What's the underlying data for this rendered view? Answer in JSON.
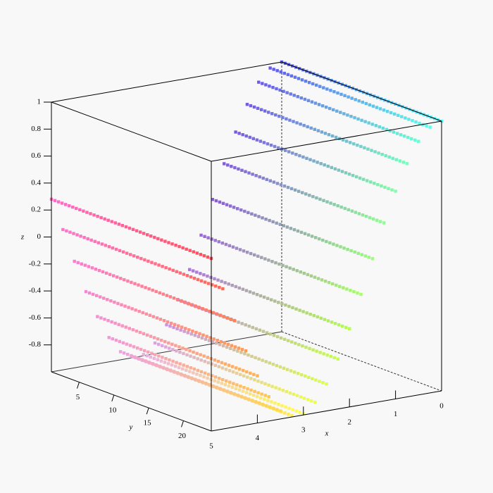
{
  "chart_data": {
    "type": "surface",
    "x": [
      0,
      0.25,
      0.5,
      0.75,
      1,
      1.25,
      1.5,
      1.75,
      2,
      2.25,
      2.5,
      2.75,
      3,
      3.25,
      3.5,
      3.75,
      4,
      4.25,
      4.5,
      4.75,
      5
    ],
    "z": [
      1,
      0.97,
      0.88,
      0.73,
      0.54,
      0.32,
      0.07,
      -0.18,
      -0.42,
      -0.63,
      -0.8,
      -0.92,
      -0.99,
      -0.99,
      -0.94,
      -0.82,
      -0.65,
      -0.45,
      -0.21,
      0.04,
      0.28
    ],
    "xlim": [
      0,
      5
    ],
    "ylim": [
      1,
      24
    ],
    "zlim": [
      -1,
      1
    ],
    "xticks": [
      0,
      1,
      2,
      3,
      4,
      5
    ],
    "yticks": [
      5,
      10,
      15,
      20
    ],
    "zticks": [
      1,
      0.8,
      0.6,
      0.4,
      0.2,
      0,
      -0.2,
      -0.4,
      -0.6,
      -0.8
    ],
    "xlabel": "x",
    "ylabel": "y",
    "zlabel": "z"
  }
}
